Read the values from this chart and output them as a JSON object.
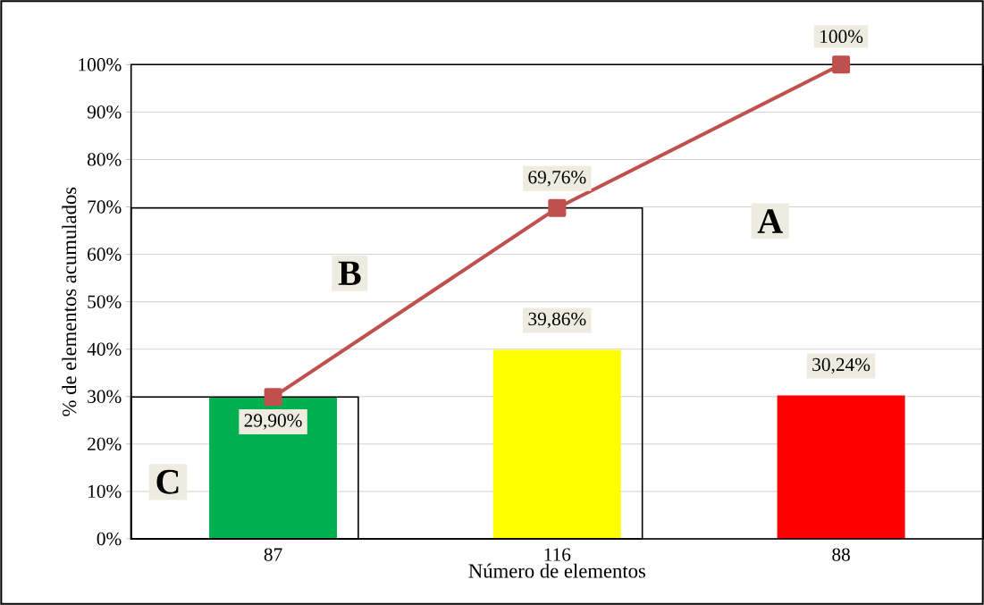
{
  "chart_data": {
    "type": "bar",
    "categories": [
      "87",
      "116",
      "88"
    ],
    "xlabel": "Número de elementos",
    "ylabel": "% de elementos acumulados",
    "ylim": [
      0,
      100
    ],
    "yticks": [
      {
        "value": 0,
        "label": "0%"
      },
      {
        "value": 10,
        "label": "10%"
      },
      {
        "value": 20,
        "label": "20%"
      },
      {
        "value": 30,
        "label": "30%"
      },
      {
        "value": 40,
        "label": "40%"
      },
      {
        "value": 50,
        "label": "50%"
      },
      {
        "value": 60,
        "label": "60%"
      },
      {
        "value": 70,
        "label": "70%"
      },
      {
        "value": 80,
        "label": "80%"
      },
      {
        "value": 90,
        "label": "90%"
      },
      {
        "value": 100,
        "label": "100%"
      }
    ],
    "grid": "y",
    "series": [
      {
        "colors": [
          "#00b050",
          "#ffff00",
          "#ff0000"
        ],
        "values": [
          29.9,
          39.86,
          30.24
        ],
        "value_labels": [
          "29,90%",
          "39,86%",
          "30,24%"
        ]
      },
      {
        "type": "line",
        "color": "#c0504d",
        "marker": "square",
        "values": [
          29.9,
          69.76,
          100
        ],
        "value_labels": [
          null,
          "69,76%",
          "100%"
        ]
      }
    ],
    "annotations": [
      "C",
      "B",
      "A"
    ]
  }
}
